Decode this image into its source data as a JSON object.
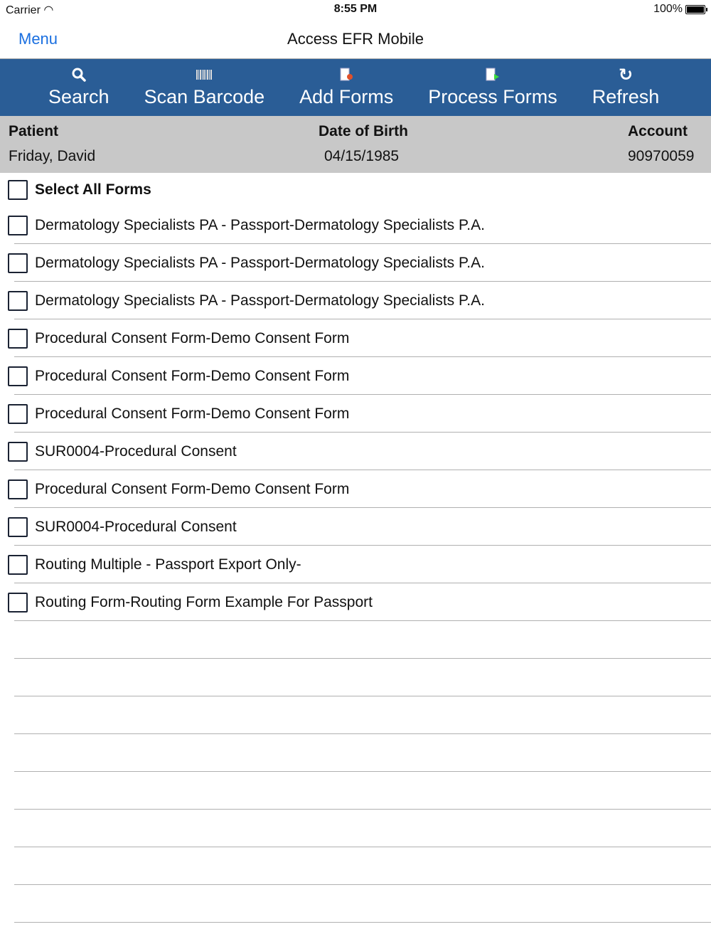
{
  "status": {
    "carrier": "Carrier",
    "time": "8:55 PM",
    "battery": "100%"
  },
  "nav": {
    "menu": "Menu",
    "title": "Access EFR Mobile"
  },
  "toolbar": [
    {
      "label": "Search",
      "icon": "search-icon"
    },
    {
      "label": "Scan Barcode",
      "icon": "barcode-icon"
    },
    {
      "label": "Add Forms",
      "icon": "add-form-icon"
    },
    {
      "label": "Process Forms",
      "icon": "process-form-icon"
    },
    {
      "label": "Refresh",
      "icon": "refresh-icon"
    }
  ],
  "colors": {
    "toolbar": "#2a5d96",
    "accent": "#1a6fe0",
    "header": "#c8c8c8"
  },
  "patient": {
    "patient_label": "Patient",
    "patient": "Friday, David",
    "dob_label": "Date of Birth",
    "dob": "04/15/1985",
    "account_label": "Account",
    "account": "90970059"
  },
  "select_all": "Select All Forms",
  "forms": [
    "Dermatology Specialists PA - Passport-Dermatology Specialists P.A.",
    "Dermatology Specialists PA - Passport-Dermatology Specialists P.A.",
    "Dermatology Specialists PA - Passport-Dermatology Specialists P.A.",
    "Procedural Consent Form-Demo Consent Form",
    "Procedural Consent Form-Demo Consent Form",
    "Procedural Consent Form-Demo Consent Form",
    "SUR0004-Procedural Consent",
    "Procedural Consent Form-Demo Consent Form",
    "SUR0004-Procedural Consent",
    "Routing Multiple - Passport Export Only-",
    "Routing Form-Routing Form Example For Passport"
  ]
}
